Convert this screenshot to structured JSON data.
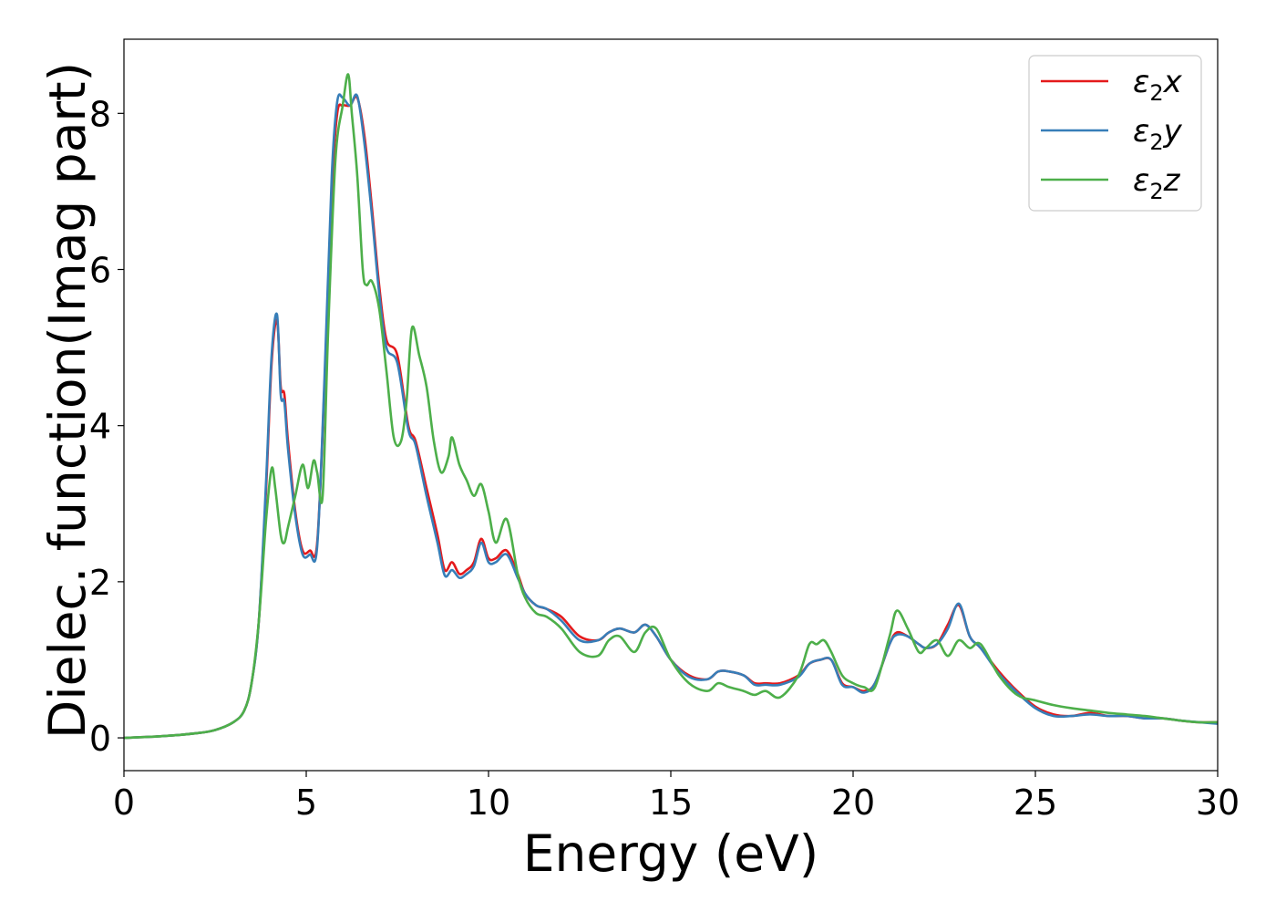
{
  "chart_data": {
    "type": "line",
    "xlabel": "Energy (eV)",
    "ylabel": "Dielec. function(Imag part)",
    "xlim": [
      0,
      30
    ],
    "ylim": [
      -0.42,
      8.95
    ],
    "xticks": [
      0,
      5,
      10,
      15,
      20,
      25,
      30
    ],
    "yticks": [
      0,
      2,
      4,
      6,
      8
    ],
    "grid": false,
    "legend_position": "top-right",
    "series": [
      {
        "name": "ε₂x",
        "legend": {
          "base": "ε",
          "sub": "2",
          "suffix": "x"
        },
        "color": "#e41a1c",
        "x": [
          0,
          1,
          2,
          2.5,
          3,
          3.3,
          3.5,
          3.7,
          3.9,
          4.05,
          4.2,
          4.3,
          4.4,
          4.5,
          4.7,
          4.9,
          5.1,
          5.3,
          5.5,
          5.7,
          5.85,
          6.0,
          6.2,
          6.4,
          6.6,
          6.8,
          7.0,
          7.2,
          7.5,
          7.8,
          8.0,
          8.3,
          8.6,
          8.8,
          9.0,
          9.2,
          9.4,
          9.6,
          9.8,
          10.0,
          10.2,
          10.5,
          10.8,
          11.0,
          11.3,
          11.6,
          12.0,
          12.5,
          13.0,
          13.3,
          13.6,
          14.0,
          14.3,
          14.6,
          15.0,
          15.5,
          16.0,
          16.3,
          16.6,
          17.0,
          17.3,
          17.6,
          18.0,
          18.5,
          18.8,
          19.1,
          19.4,
          19.7,
          20.0,
          20.3,
          20.6,
          21.0,
          21.2,
          21.5,
          21.8,
          22.0,
          22.3,
          22.6,
          22.9,
          23.2,
          23.5,
          24.0,
          24.5,
          25.0,
          25.5,
          26.0,
          26.5,
          27.0,
          27.5,
          28.0,
          28.5,
          29.0,
          29.5,
          30.0
        ],
        "y": [
          0.0,
          0.02,
          0.06,
          0.1,
          0.2,
          0.35,
          0.7,
          1.5,
          3.2,
          4.8,
          5.35,
          4.5,
          4.4,
          3.8,
          2.9,
          2.4,
          2.4,
          2.5,
          4.5,
          7.0,
          8.0,
          8.1,
          8.1,
          8.2,
          7.7,
          6.8,
          5.8,
          5.1,
          4.9,
          4.0,
          3.8,
          3.2,
          2.6,
          2.15,
          2.25,
          2.1,
          2.15,
          2.25,
          2.55,
          2.3,
          2.3,
          2.4,
          2.1,
          1.85,
          1.7,
          1.65,
          1.55,
          1.3,
          1.25,
          1.35,
          1.4,
          1.35,
          1.45,
          1.3,
          1.0,
          0.8,
          0.75,
          0.85,
          0.85,
          0.8,
          0.7,
          0.7,
          0.7,
          0.8,
          0.95,
          1.0,
          1.0,
          0.7,
          0.65,
          0.6,
          0.7,
          1.2,
          1.35,
          1.3,
          1.2,
          1.15,
          1.2,
          1.45,
          1.7,
          1.3,
          1.15,
          0.85,
          0.6,
          0.4,
          0.3,
          0.28,
          0.32,
          0.28,
          0.28,
          0.25,
          0.25,
          0.22,
          0.2,
          0.2
        ]
      },
      {
        "name": "ε₂y",
        "legend": {
          "base": "ε",
          "sub": "2",
          "suffix": "y"
        },
        "color": "#377eb8",
        "x": [
          0,
          1,
          2,
          2.5,
          3,
          3.3,
          3.5,
          3.7,
          3.9,
          4.05,
          4.2,
          4.3,
          4.4,
          4.5,
          4.7,
          4.9,
          5.1,
          5.3,
          5.5,
          5.7,
          5.85,
          6.0,
          6.2,
          6.4,
          6.6,
          6.8,
          7.0,
          7.2,
          7.5,
          7.8,
          8.0,
          8.3,
          8.6,
          8.8,
          9.0,
          9.2,
          9.4,
          9.6,
          9.8,
          10.0,
          10.2,
          10.5,
          10.8,
          11.0,
          11.3,
          11.6,
          12.0,
          12.5,
          13.0,
          13.3,
          13.6,
          14.0,
          14.3,
          14.6,
          15.0,
          15.5,
          16.0,
          16.3,
          16.6,
          17.0,
          17.3,
          17.6,
          18.0,
          18.5,
          18.8,
          19.1,
          19.4,
          19.7,
          20.0,
          20.3,
          20.6,
          21.0,
          21.2,
          21.5,
          21.8,
          22.0,
          22.3,
          22.6,
          22.9,
          23.2,
          23.5,
          24.0,
          24.5,
          25.0,
          25.5,
          26.0,
          26.5,
          27.0,
          27.5,
          28.0,
          28.5,
          29.0,
          29.5,
          30.0
        ],
        "y": [
          0.0,
          0.02,
          0.06,
          0.1,
          0.2,
          0.35,
          0.7,
          1.5,
          3.3,
          4.9,
          5.42,
          4.4,
          4.3,
          3.7,
          2.85,
          2.35,
          2.35,
          2.45,
          4.6,
          7.2,
          8.15,
          8.2,
          8.1,
          8.22,
          7.6,
          6.7,
          5.7,
          5.0,
          4.8,
          3.95,
          3.75,
          3.1,
          2.5,
          2.08,
          2.15,
          2.05,
          2.1,
          2.2,
          2.5,
          2.25,
          2.25,
          2.35,
          2.05,
          1.85,
          1.7,
          1.65,
          1.5,
          1.25,
          1.25,
          1.35,
          1.4,
          1.35,
          1.45,
          1.3,
          1.0,
          0.78,
          0.75,
          0.85,
          0.85,
          0.8,
          0.68,
          0.68,
          0.68,
          0.78,
          0.95,
          1.0,
          1.0,
          0.68,
          0.65,
          0.58,
          0.7,
          1.2,
          1.32,
          1.3,
          1.2,
          1.15,
          1.2,
          1.4,
          1.72,
          1.3,
          1.15,
          0.82,
          0.58,
          0.38,
          0.28,
          0.28,
          0.3,
          0.28,
          0.28,
          0.25,
          0.25,
          0.22,
          0.2,
          0.18
        ]
      },
      {
        "name": "ε₂z",
        "legend": {
          "base": "ε",
          "sub": "2",
          "suffix": "z"
        },
        "color": "#4daf4a",
        "x": [
          0,
          1,
          2,
          2.5,
          3,
          3.3,
          3.5,
          3.7,
          3.9,
          4.05,
          4.15,
          4.3,
          4.4,
          4.5,
          4.7,
          4.9,
          5.05,
          5.2,
          5.3,
          5.45,
          5.6,
          5.8,
          6.0,
          6.15,
          6.25,
          6.4,
          6.55,
          6.65,
          6.8,
          7.0,
          7.2,
          7.4,
          7.6,
          7.75,
          7.9,
          8.1,
          8.3,
          8.5,
          8.7,
          8.9,
          9.0,
          9.2,
          9.4,
          9.6,
          9.8,
          10.0,
          10.2,
          10.5,
          10.8,
          11.0,
          11.3,
          11.6,
          12.0,
          12.5,
          13.0,
          13.3,
          13.6,
          14.0,
          14.3,
          14.6,
          15.0,
          15.5,
          16.0,
          16.3,
          16.6,
          17.0,
          17.3,
          17.6,
          18.0,
          18.5,
          18.8,
          19.0,
          19.2,
          19.4,
          19.7,
          20.0,
          20.3,
          20.6,
          21.0,
          21.2,
          21.5,
          21.8,
          22.0,
          22.3,
          22.6,
          22.9,
          23.2,
          23.5,
          24.0,
          24.5,
          25.0,
          25.5,
          26.0,
          26.5,
          27.0,
          27.5,
          28.0,
          28.5,
          29.0,
          29.5,
          30.0
        ],
        "y": [
          0.0,
          0.02,
          0.06,
          0.1,
          0.2,
          0.35,
          0.7,
          1.5,
          2.8,
          3.45,
          3.2,
          2.6,
          2.5,
          2.7,
          3.1,
          3.5,
          3.2,
          3.55,
          3.4,
          3.1,
          5.2,
          7.4,
          8.1,
          8.5,
          8.0,
          7.2,
          6.0,
          5.8,
          5.85,
          5.5,
          4.7,
          3.85,
          3.8,
          4.3,
          5.25,
          4.9,
          4.5,
          3.8,
          3.4,
          3.6,
          3.85,
          3.5,
          3.3,
          3.1,
          3.25,
          2.9,
          2.5,
          2.8,
          2.1,
          1.8,
          1.6,
          1.55,
          1.4,
          1.1,
          1.05,
          1.25,
          1.3,
          1.1,
          1.35,
          1.4,
          1.0,
          0.7,
          0.6,
          0.7,
          0.65,
          0.6,
          0.55,
          0.6,
          0.52,
          0.8,
          1.2,
          1.2,
          1.25,
          1.1,
          0.8,
          0.7,
          0.65,
          0.65,
          1.3,
          1.63,
          1.4,
          1.1,
          1.15,
          1.25,
          1.05,
          1.25,
          1.15,
          1.2,
          0.8,
          0.55,
          0.48,
          0.42,
          0.38,
          0.35,
          0.32,
          0.3,
          0.28,
          0.25,
          0.22,
          0.2,
          0.2
        ]
      }
    ]
  }
}
